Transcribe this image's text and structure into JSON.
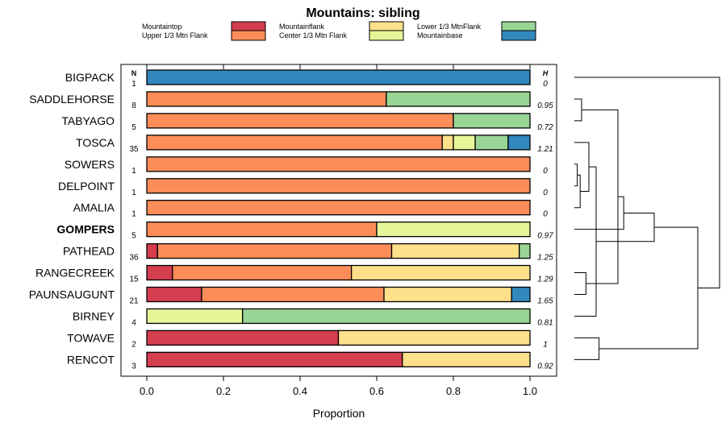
{
  "chart_data": {
    "type": "bar",
    "stacked": true,
    "orientation": "horizontal",
    "title": "Mountains: sibling",
    "xlabel": "Proportion",
    "ylabel": "",
    "xlim": [
      0,
      1
    ],
    "x_ticks": [
      "0.0",
      "0.2",
      "0.4",
      "0.6",
      "0.8",
      "1.0"
    ],
    "n_header": "N",
    "h_header": "H",
    "legend_placement": "top",
    "legend": [
      {
        "name": "Mountaintop",
        "color": "#d53e4f"
      },
      {
        "name": "Upper 1/3 Mtn Flank",
        "color": "#fc8d59"
      },
      {
        "name": "Mountainflank",
        "color": "#fee08b"
      },
      {
        "name": "Center 1/3 Mtn Flank",
        "color": "#e6f598"
      },
      {
        "name": "Lower 1/3 MtnFlank",
        "color": "#99d594"
      },
      {
        "name": "Mountainbase",
        "color": "#3288bd"
      }
    ],
    "rows": [
      {
        "label": "BIGPACK",
        "bold": false,
        "n": "1",
        "h": "0",
        "values": [
          0,
          0,
          0,
          0,
          0,
          1
        ]
      },
      {
        "label": "SADDLEHORSE",
        "bold": false,
        "n": "8",
        "h": "0.95",
        "values": [
          0,
          0.625,
          0,
          0,
          0.375,
          0
        ]
      },
      {
        "label": "TABYAGO",
        "bold": false,
        "n": "5",
        "h": "0.72",
        "values": [
          0,
          0.8,
          0,
          0,
          0.2,
          0
        ]
      },
      {
        "label": "TOSCA",
        "bold": false,
        "n": "35",
        "h": "1.21",
        "values": [
          0,
          0.771,
          0.029,
          0.057,
          0.086,
          0.057
        ]
      },
      {
        "label": "SOWERS",
        "bold": false,
        "n": "1",
        "h": "0",
        "values": [
          0,
          1,
          0,
          0,
          0,
          0
        ]
      },
      {
        "label": "DELPOINT",
        "bold": false,
        "n": "1",
        "h": "0",
        "values": [
          0,
          1,
          0,
          0,
          0,
          0
        ]
      },
      {
        "label": "AMALIA",
        "bold": false,
        "n": "1",
        "h": "0",
        "values": [
          0,
          1,
          0,
          0,
          0,
          0
        ]
      },
      {
        "label": "GOMPERS",
        "bold": true,
        "n": "5",
        "h": "0.97",
        "values": [
          0,
          0.6,
          0,
          0.4,
          0,
          0
        ]
      },
      {
        "label": "PATHEAD",
        "bold": false,
        "n": "36",
        "h": "1.25",
        "values": [
          0.028,
          0.611,
          0.333,
          0,
          0.028,
          0
        ]
      },
      {
        "label": "RANGECREEK",
        "bold": false,
        "n": "15",
        "h": "1.29",
        "values": [
          0.067,
          0.467,
          0.466,
          0,
          0,
          0
        ]
      },
      {
        "label": "PAUNSAUGUNT",
        "bold": false,
        "n": "21",
        "h": "1.65",
        "values": [
          0.143,
          0.476,
          0.333,
          0,
          0,
          0.048
        ]
      },
      {
        "label": "BIRNEY",
        "bold": false,
        "n": "4",
        "h": "0.81",
        "values": [
          0,
          0,
          0,
          0.25,
          0.75,
          0
        ]
      },
      {
        "label": "TOWAVE",
        "bold": false,
        "n": "2",
        "h": "1",
        "values": [
          0.5,
          0,
          0.5,
          0,
          0,
          0
        ]
      },
      {
        "label": "RENCOT",
        "bold": false,
        "n": "3",
        "h": "0.92",
        "values": [
          0.667,
          0,
          0.333,
          0,
          0,
          0
        ]
      }
    ],
    "dendrogram": {
      "merges": [
        {
          "a": 4,
          "b": 5,
          "height": 0.02
        },
        {
          "a": 14,
          "b": 6,
          "height": 0.04
        },
        {
          "a": 1,
          "b": 2,
          "height": 0.05
        },
        {
          "a": 9,
          "b": 10,
          "height": 0.08
        },
        {
          "a": 15,
          "b": 3,
          "height": 0.1
        },
        {
          "a": 12,
          "b": 13,
          "height": 0.17
        },
        {
          "a": 18,
          "b": 11,
          "height": 0.15
        },
        {
          "a": 16,
          "b": 17,
          "height": 0.3
        },
        {
          "a": 21,
          "b": 7,
          "height": 0.34
        },
        {
          "a": 22,
          "b": 20,
          "height": 0.55
        },
        {
          "a": 23,
          "b": 19,
          "height": 0.85
        },
        {
          "a": 0,
          "b": 24,
          "height": 1.0
        }
      ]
    }
  }
}
